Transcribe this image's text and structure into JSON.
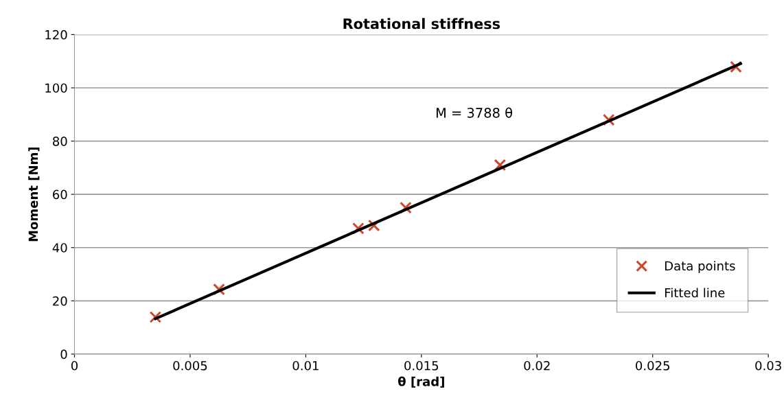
{
  "chart_data": {
    "type": "scatter",
    "title": "Rotational stiffness",
    "xlabel": "θ [rad]",
    "ylabel": "Moment [Nm]",
    "series": [
      {
        "name": "Data points",
        "color": "#d0462a",
        "marker": "cross",
        "x": [
          0.0035,
          0.00625,
          0.01227,
          0.01295,
          0.01432,
          0.0184,
          0.0231,
          0.0286
        ],
        "values": [
          13.9,
          24.3,
          47.2,
          48.3,
          55.0,
          71.0,
          88.0,
          107.9
        ]
      },
      {
        "name": "Fitted line",
        "type": "line",
        "color": "#000000",
        "marker": "none",
        "line_style": "solid",
        "x": [
          0.0035,
          0.0288
        ],
        "values": [
          13.3,
          109.1
        ]
      }
    ],
    "annotations": [
      "M = 3788 θ"
    ],
    "xlim": [
      0,
      0.03
    ],
    "xticks": [
      0,
      0.005,
      0.01,
      0.015,
      0.02,
      0.025,
      0.03
    ],
    "ylim": [
      0,
      120
    ],
    "yticks": [
      0,
      20,
      40,
      60,
      80,
      100,
      120
    ],
    "grid": "y",
    "legend": "bottom right"
  }
}
